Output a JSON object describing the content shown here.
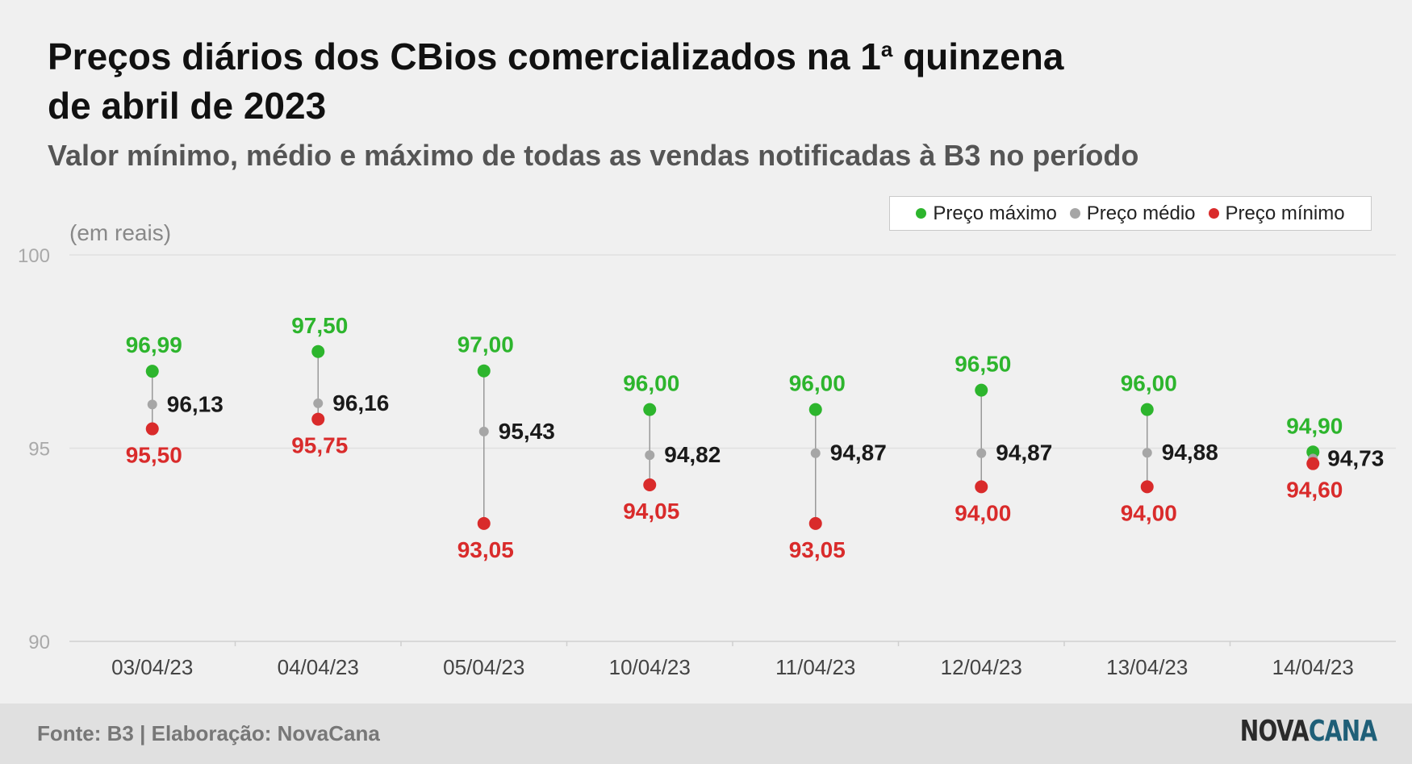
{
  "title_line1": "Preços diários dos CBios comercializados na 1",
  "title_sup": "a",
  "title_line1_end": " quinzena",
  "title_line2": "de abril de 2023",
  "subtitle": "Valor mínimo, médio e máximo de todas as vendas notificadas à B3 no período",
  "legend": {
    "max": {
      "label": "Preço máximo",
      "color": "#2db52d"
    },
    "avg": {
      "label": "Preço médio",
      "color": "#a6a6a6"
    },
    "min": {
      "label": "Preço mínimo",
      "color": "#d92b2b"
    }
  },
  "footer": {
    "source": "Fonte: B3 | Elaboração: NovaCana",
    "logo_part1": "NOVA",
    "logo_part2": "CANA"
  },
  "chart_data": {
    "type": "scatter",
    "ylabel": "(em reais)",
    "ylim": [
      90,
      100
    ],
    "yticks": [
      90,
      95,
      100
    ],
    "grid": true,
    "legend_position": "top-right",
    "categories": [
      "03/04/23",
      "04/04/23",
      "05/04/23",
      "10/04/23",
      "11/04/23",
      "12/04/23",
      "13/04/23",
      "14/04/23"
    ],
    "series": [
      {
        "name": "Preço máximo",
        "color": "#2db52d",
        "label_color": "#2db52d",
        "values": [
          96.99,
          97.5,
          97.0,
          96.0,
          96.0,
          96.5,
          96.0,
          94.9
        ]
      },
      {
        "name": "Preço médio",
        "color": "#a6a6a6",
        "label_color": "#1a1a1a",
        "values": [
          96.13,
          96.16,
          95.43,
          94.82,
          94.87,
          94.87,
          94.88,
          94.73
        ]
      },
      {
        "name": "Preço mínimo",
        "color": "#d92b2b",
        "label_color": "#d92b2b",
        "values": [
          95.5,
          95.75,
          93.05,
          94.05,
          93.05,
          94.0,
          94.0,
          94.6
        ]
      }
    ],
    "labels": {
      "max": [
        "96,99",
        "97,50",
        "97,00",
        "96,00",
        "96,00",
        "96,50",
        "96,00",
        "94,90"
      ],
      "avg": [
        "96,13",
        "96,16",
        "95,43",
        "94,82",
        "94,87",
        "94,87",
        "94,88",
        "94,73"
      ],
      "min": [
        "95,50",
        "95,75",
        "93,05",
        "94,05",
        "93,05",
        "94,00",
        "94,00",
        "94,60"
      ]
    }
  }
}
